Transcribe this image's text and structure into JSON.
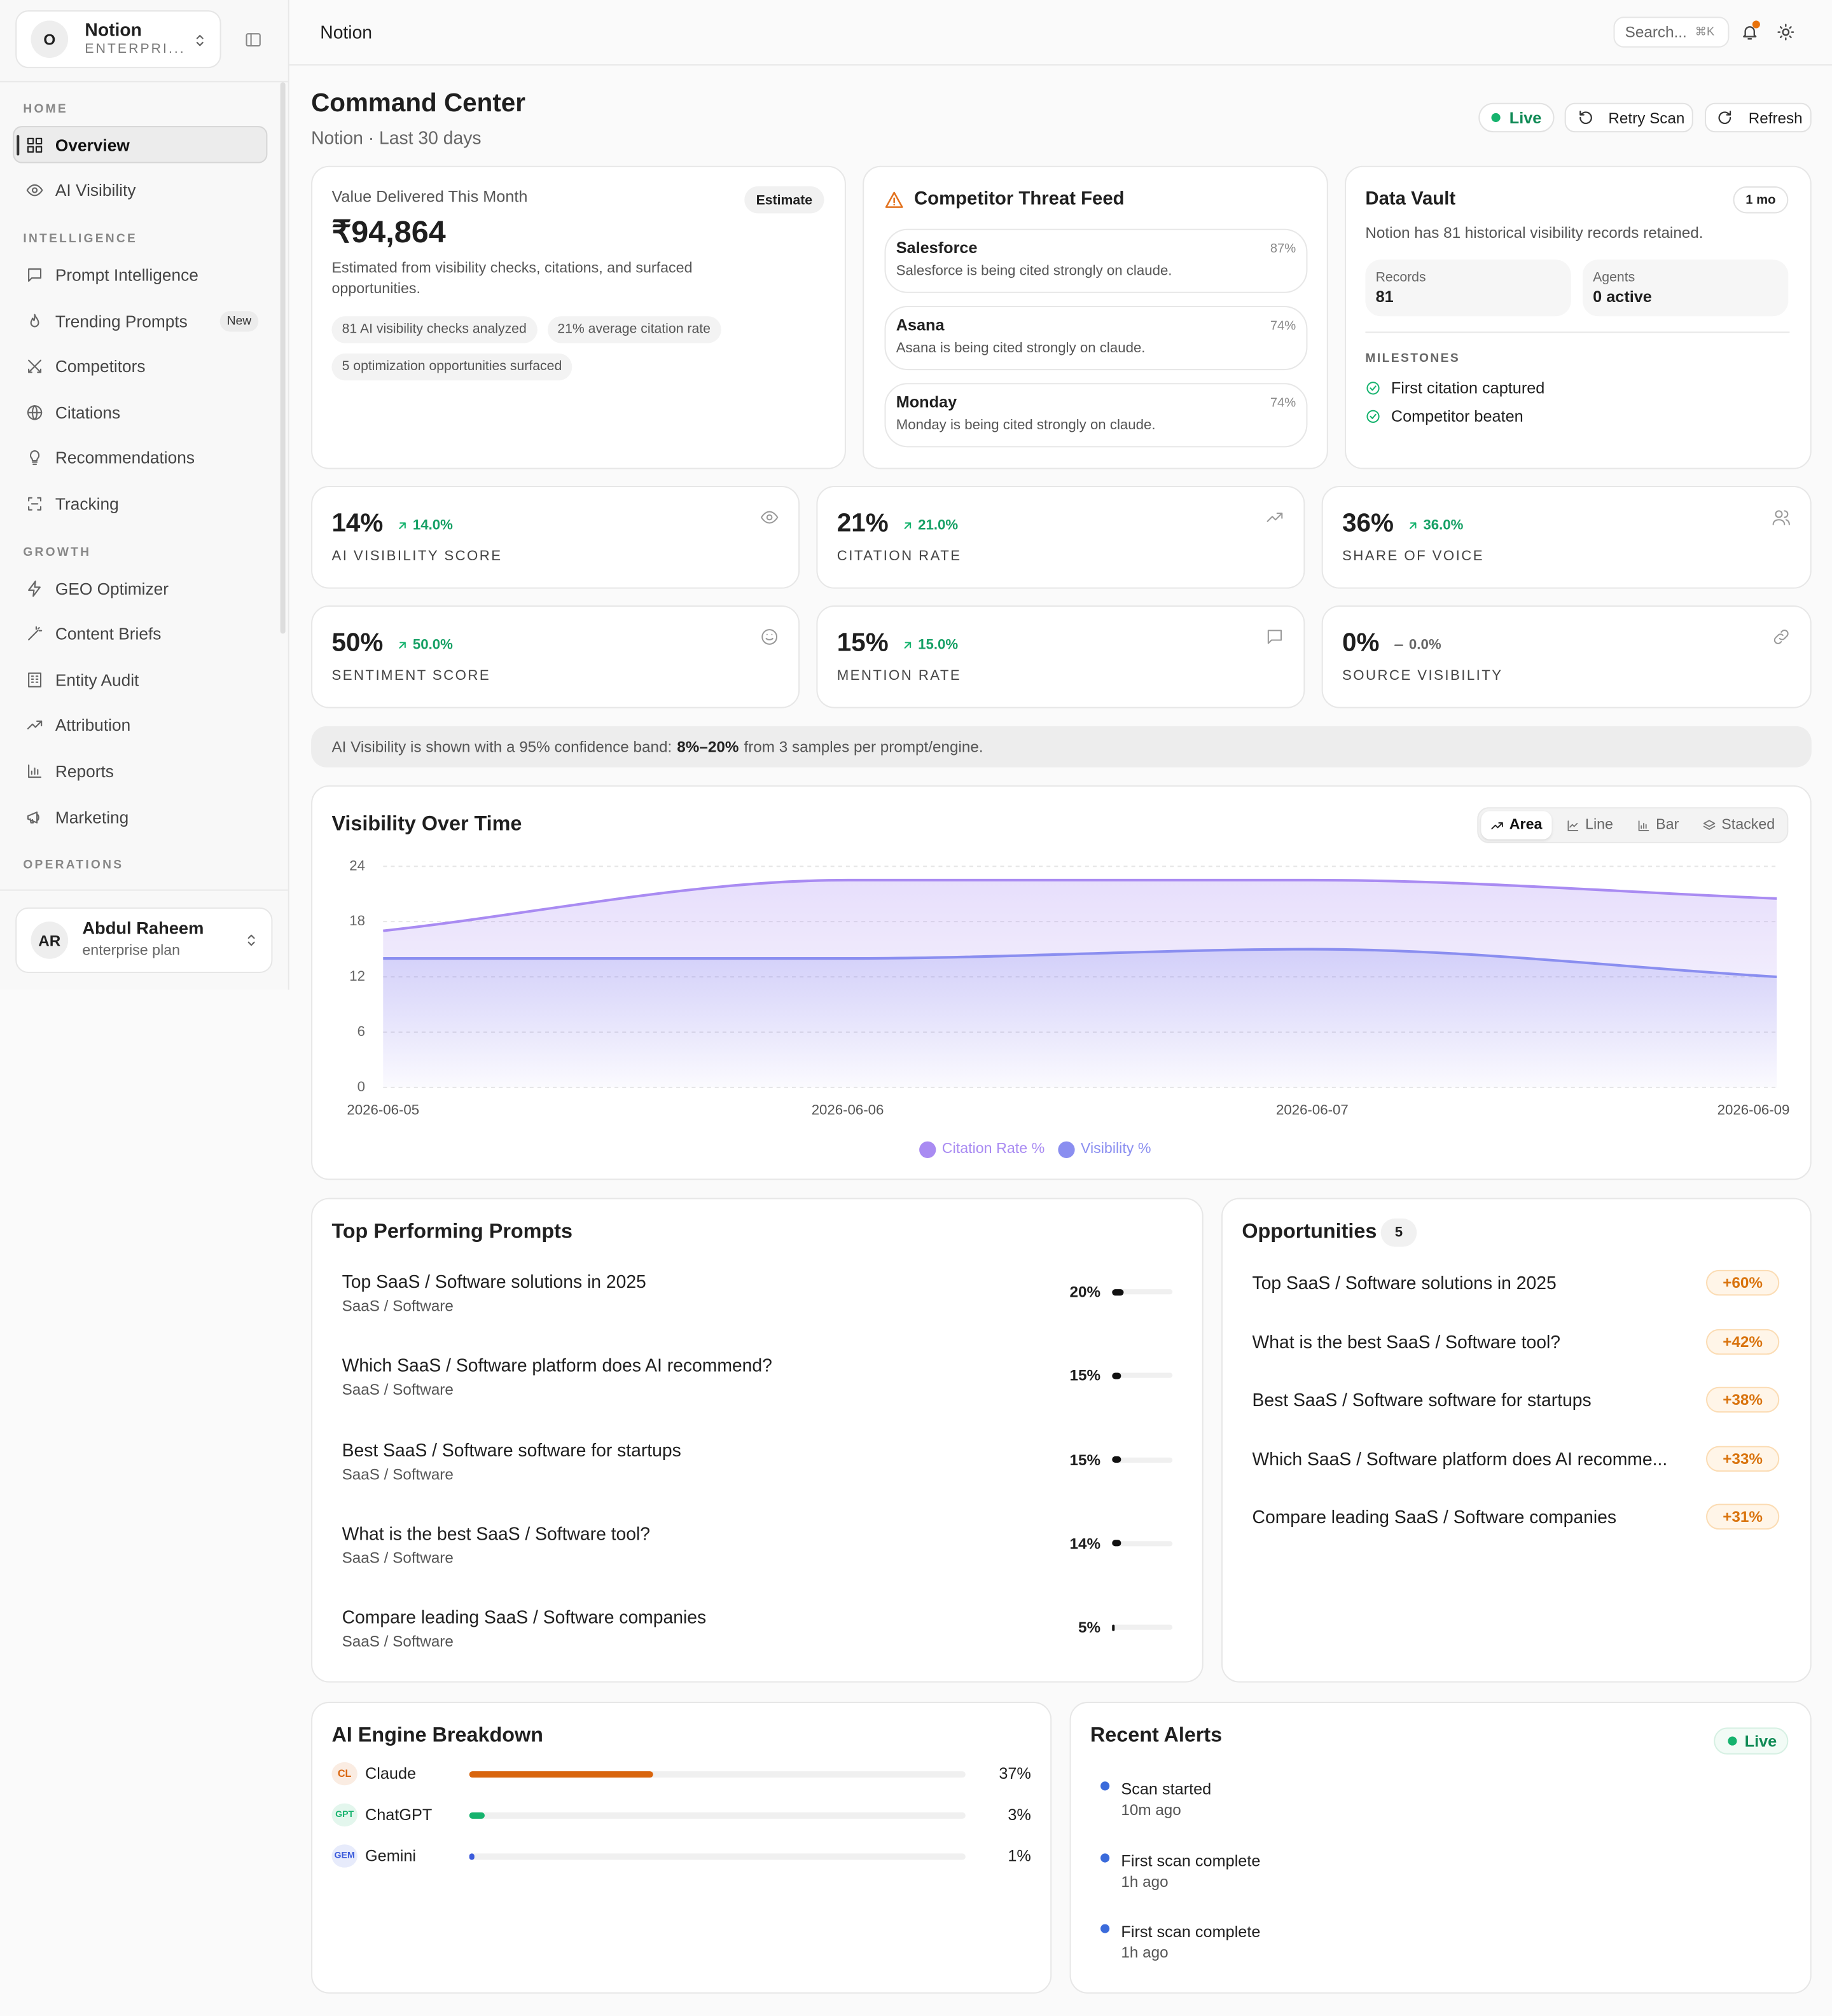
{
  "sidebar": {
    "workspace": {
      "initial": "O",
      "name": "Notion",
      "plan": "ENTERPRI..."
    },
    "sections": [
      {
        "title": "HOME",
        "items": [
          {
            "label": "Overview",
            "active": true
          },
          {
            "label": "AI Visibility"
          }
        ]
      },
      {
        "title": "INTELLIGENCE",
        "items": [
          {
            "label": "Prompt Intelligence"
          },
          {
            "label": "Trending Prompts",
            "badge": "New"
          },
          {
            "label": "Competitors"
          },
          {
            "label": "Citations"
          },
          {
            "label": "Recommendations"
          },
          {
            "label": "Tracking"
          }
        ]
      },
      {
        "title": "GROWTH",
        "items": [
          {
            "label": "GEO Optimizer"
          },
          {
            "label": "Content Briefs"
          },
          {
            "label": "Entity Audit"
          },
          {
            "label": "Attribution"
          },
          {
            "label": "Reports"
          },
          {
            "label": "Marketing"
          }
        ]
      },
      {
        "title": "OPERATIONS",
        "items": []
      }
    ],
    "user": {
      "initials": "AR",
      "name": "Abdul Raheem",
      "plan": "enterprise plan"
    }
  },
  "topbar": {
    "title": "Notion",
    "search": "Search...",
    "shortcut": "⌘K"
  },
  "page": {
    "title": "Command Center",
    "subtitle": "Notion · Last 30 days",
    "status": "Live",
    "actions": [
      "Retry Scan",
      "Refresh"
    ]
  },
  "value_card": {
    "label": "Value Delivered This Month",
    "badge": "Estimate",
    "amount": "₹94,864",
    "description": "Estimated from visibility checks, citations, and surfaced opportunities.",
    "chips": [
      "81 AI visibility checks analyzed",
      "21% average citation rate",
      "5 optimization opportunities surfaced"
    ]
  },
  "threat_feed": {
    "title": "Competitor Threat Feed",
    "items": [
      {
        "name": "Salesforce",
        "text": "Salesforce is being cited strongly on claude.",
        "score": "87%"
      },
      {
        "name": "Asana",
        "text": "Asana is being cited strongly on claude.",
        "score": "74%"
      },
      {
        "name": "Monday",
        "text": "Monday is being cited strongly on claude.",
        "score": "74%"
      }
    ]
  },
  "data_vault": {
    "title": "Data Vault",
    "badge": "1 mo",
    "text": "Notion has 81 historical visibility records retained.",
    "stats": [
      {
        "label": "Records",
        "value": "81"
      },
      {
        "label": "Agents",
        "value": "0 active"
      }
    ],
    "milestones_title": "MILESTONES",
    "milestones": [
      "First citation captured",
      "Competitor beaten"
    ]
  },
  "metrics": [
    {
      "value": "14%",
      "change": "14.0%",
      "trend": "up",
      "label": "AI VISIBILITY SCORE"
    },
    {
      "value": "21%",
      "change": "21.0%",
      "trend": "up",
      "label": "CITATION RATE"
    },
    {
      "value": "36%",
      "change": "36.0%",
      "trend": "up",
      "label": "SHARE OF VOICE"
    },
    {
      "value": "50%",
      "change": "50.0%",
      "trend": "up",
      "label": "SENTIMENT SCORE"
    },
    {
      "value": "15%",
      "change": "15.0%",
      "trend": "up",
      "label": "MENTION RATE"
    },
    {
      "value": "0%",
      "change": "0.0%",
      "trend": "flat",
      "label": "SOURCE VISIBILITY"
    }
  ],
  "confidence_note": {
    "before": "AI Visibility is shown with a 95% confidence band:",
    "range": "8%–20%",
    "after": "from 3 samples per prompt/engine."
  },
  "chart_views": [
    "Area",
    "Line",
    "Bar",
    "Stacked"
  ],
  "chart_data": {
    "type": "area",
    "title": "Visibility Over Time",
    "categories": [
      "2026-06-05",
      "2026-06-06",
      "2026-06-07",
      "2026-06-09"
    ],
    "series": [
      {
        "name": "Citation Rate %",
        "color": "#a98bf2",
        "values": [
          17,
          22.5,
          22.5,
          20.5
        ]
      },
      {
        "name": "Visibility %",
        "color": "#8a8ef0",
        "values": [
          14,
          14,
          15,
          12
        ]
      }
    ],
    "ylim": [
      0,
      24
    ],
    "yticks": [
      0,
      6,
      12,
      18,
      24
    ],
    "grid": true,
    "legend": "bottom"
  },
  "top_prompts": {
    "title": "Top Performing Prompts",
    "items": [
      {
        "prompt": "Top SaaS / Software solutions in 2025",
        "category": "SaaS / Software",
        "value": 20,
        "label": "20%"
      },
      {
        "prompt": "Which SaaS / Software platform does AI recommend?",
        "category": "SaaS / Software",
        "value": 15,
        "label": "15%"
      },
      {
        "prompt": "Best SaaS / Software software for startups",
        "category": "SaaS / Software",
        "value": 15,
        "label": "15%"
      },
      {
        "prompt": "What is the best SaaS / Software tool?",
        "category": "SaaS / Software",
        "value": 14,
        "label": "14%"
      },
      {
        "prompt": "Compare leading SaaS / Software companies",
        "category": "SaaS / Software",
        "value": 5,
        "label": "5%"
      }
    ]
  },
  "opportunities": {
    "title": "Opportunities",
    "count": "5",
    "items": [
      {
        "prompt": "Top SaaS / Software solutions in 2025",
        "lift": "+60%"
      },
      {
        "prompt": "What is the best SaaS / Software tool?",
        "lift": "+42%"
      },
      {
        "prompt": "Best SaaS / Software software for startups",
        "lift": "+38%"
      },
      {
        "prompt": "Which SaaS / Software platform does AI recomme...",
        "lift": "+33%"
      },
      {
        "prompt": "Compare leading SaaS / Software companies",
        "lift": "+31%"
      }
    ]
  },
  "engine_breakdown": {
    "title": "AI Engine Breakdown",
    "items": [
      {
        "badge": "CL",
        "name": "Claude",
        "value": 37,
        "label": "37%",
        "color": "#d9650d"
      },
      {
        "badge": "GPT",
        "name": "ChatGPT",
        "value": 3,
        "label": "3%",
        "color": "#16b36e"
      },
      {
        "badge": "GEM",
        "name": "Gemini",
        "value": 1,
        "label": "1%",
        "color": "#3b5bdb"
      }
    ]
  },
  "recent_alerts": {
    "title": "Recent Alerts",
    "status": "Live",
    "items": [
      {
        "title": "Scan started",
        "time": "10m ago"
      },
      {
        "title": "First scan complete",
        "time": "1h ago"
      },
      {
        "title": "First scan complete",
        "time": "1h ago"
      }
    ]
  }
}
